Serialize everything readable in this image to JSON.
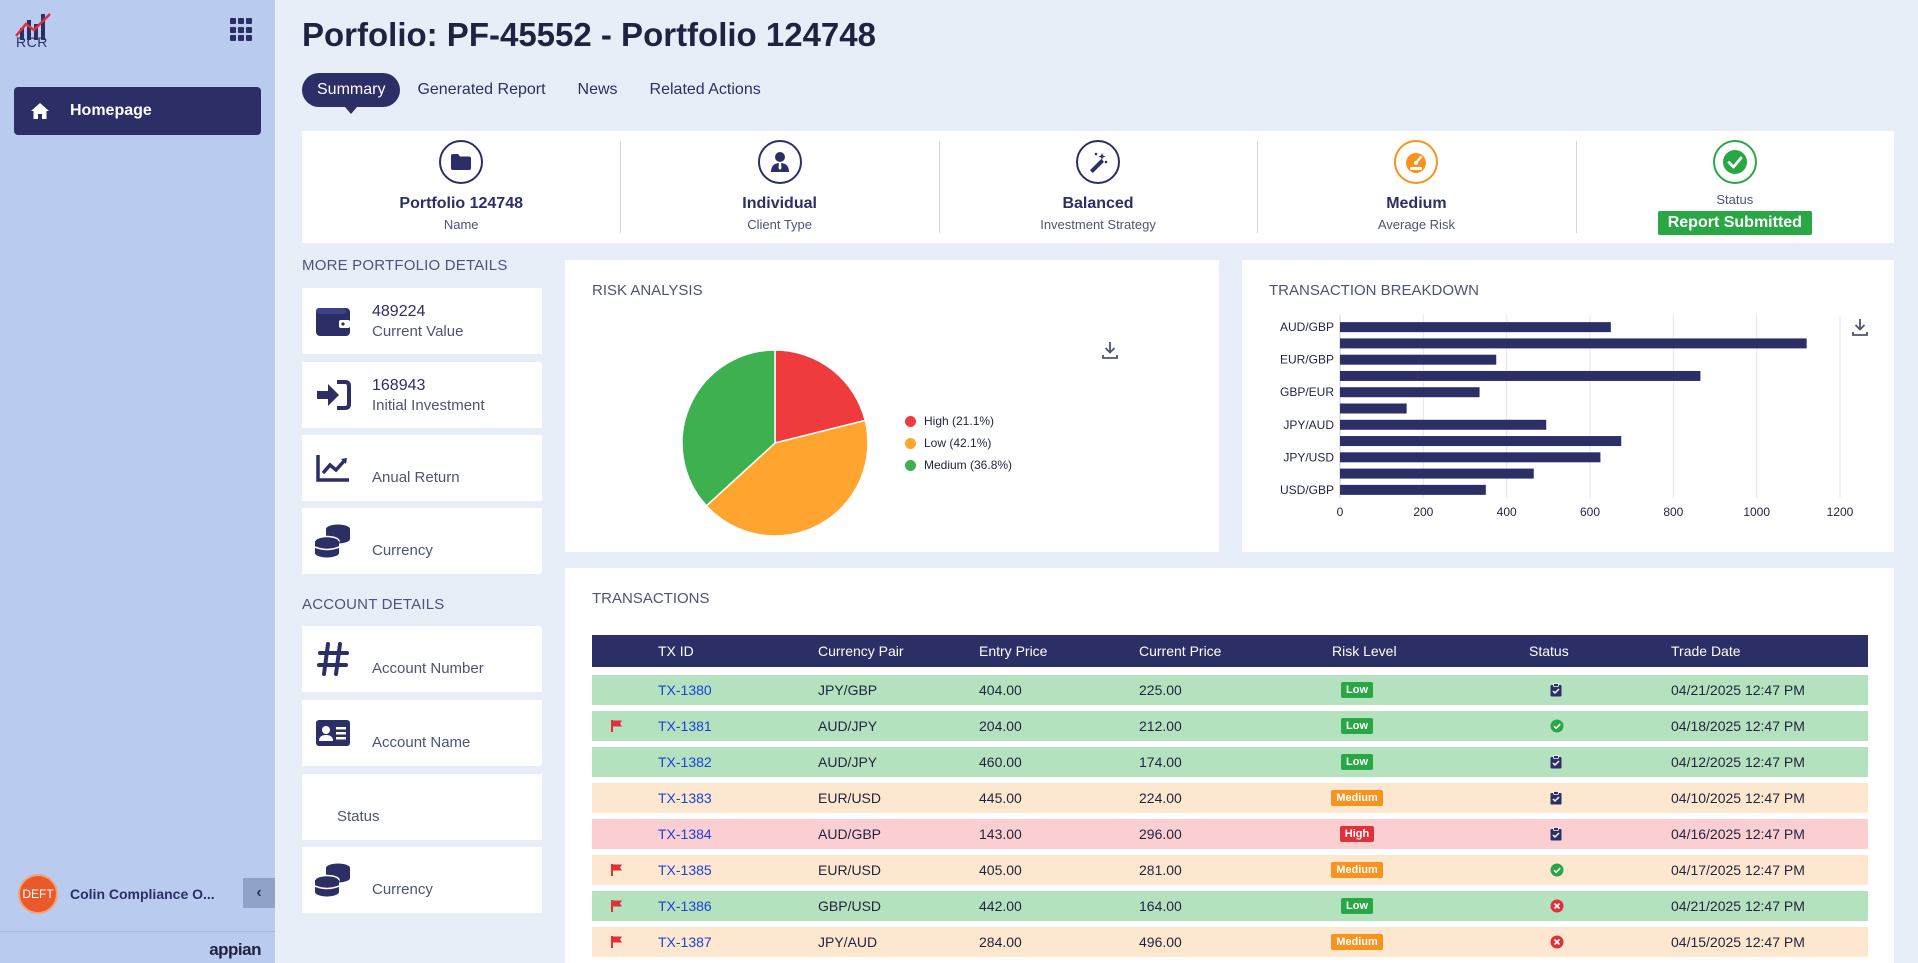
{
  "sidebar": {
    "logo_text": "RCR",
    "nav_home": "Homepage",
    "user": {
      "initials": "DEFT",
      "name": "Colin Compliance O..."
    },
    "footer_brand": "appian"
  },
  "page": {
    "title": "Porfolio: PF-45552 - Portfolio 124748",
    "tabs": [
      "Summary",
      "Generated Report",
      "News",
      "Related Actions"
    ]
  },
  "kpis": [
    {
      "value": "Portfolio 124748",
      "label": "Name",
      "icon": "folder-icon"
    },
    {
      "value": "Individual",
      "label": "Client Type",
      "icon": "user-tie-icon"
    },
    {
      "value": "Balanced",
      "label": "Investment Strategy",
      "icon": "magic-wand-icon"
    },
    {
      "value": "Medium",
      "label": "Average Risk",
      "icon": "gauge-icon"
    },
    {
      "label": "Status",
      "badge": "Report Submitted",
      "icon": "check-circle-icon"
    }
  ],
  "portfolio_details": {
    "title": "MORE PORTFOLIO DETAILS",
    "items": [
      {
        "value": "489224",
        "label": "Current Value"
      },
      {
        "value": "168943",
        "label": "Initial Investment"
      },
      {
        "value": "",
        "label": "Anual Return"
      },
      {
        "value": "",
        "label": "Currency"
      }
    ]
  },
  "account_details": {
    "title": "ACCOUNT DETAILS",
    "items": [
      {
        "label": "Account Number"
      },
      {
        "label": "Account Name"
      },
      {
        "label": "Status"
      },
      {
        "label": "Currency"
      }
    ]
  },
  "risk_analysis": {
    "title": "RISK ANALYSIS",
    "chart_data": {
      "type": "pie",
      "slices": [
        {
          "label": "High (21.1%)",
          "value": 21.1,
          "color": "#ef3b3e"
        },
        {
          "label": "Low (42.1%)",
          "value": 42.1,
          "color": "#ffa42e"
        },
        {
          "label": "Medium (36.8%)",
          "value": 36.8,
          "color": "#3db14f"
        }
      ]
    }
  },
  "transaction_breakdown": {
    "title": "TRANSACTION BREAKDOWN",
    "chart_data": {
      "type": "bar",
      "orientation": "horizontal",
      "categories": [
        "AUD/GBP",
        "",
        "EUR/GBP",
        "",
        "GBP/EUR",
        "",
        "JPY/AUD",
        "",
        "JPY/USD",
        "",
        "USD/GBP"
      ],
      "values": [
        650,
        1120,
        375,
        865,
        335,
        160,
        495,
        675,
        625,
        465,
        350
      ],
      "xlim": [
        0,
        1200
      ],
      "xticks": [
        0,
        200,
        400,
        600,
        800,
        1000,
        1200
      ],
      "color": "#2b2f66",
      "grid": true
    }
  },
  "transactions": {
    "title": "TRANSACTIONS",
    "columns": [
      "TX ID",
      "Currency Pair",
      "Entry Price",
      "Current Price",
      "Risk Level",
      "Status",
      "Trade Date"
    ],
    "rows": [
      {
        "flag": false,
        "id": "TX-1380",
        "pair": "JPY/GBP",
        "entry": "404.00",
        "current": "225.00",
        "risk": "Low",
        "status": "clipboard",
        "date": "04/21/2025 12:47 PM"
      },
      {
        "flag": true,
        "id": "TX-1381",
        "pair": "AUD/JPY",
        "entry": "204.00",
        "current": "212.00",
        "risk": "Low",
        "status": "check",
        "date": "04/18/2025 12:47 PM"
      },
      {
        "flag": false,
        "id": "TX-1382",
        "pair": "AUD/JPY",
        "entry": "460.00",
        "current": "174.00",
        "risk": "Low",
        "status": "clipboard",
        "date": "04/12/2025 12:47 PM"
      },
      {
        "flag": false,
        "id": "TX-1383",
        "pair": "EUR/USD",
        "entry": "445.00",
        "current": "224.00",
        "risk": "Medium",
        "status": "clipboard",
        "date": "04/10/2025 12:47 PM"
      },
      {
        "flag": false,
        "id": "TX-1384",
        "pair": "AUD/GBP",
        "entry": "143.00",
        "current": "296.00",
        "risk": "High",
        "status": "clipboard",
        "date": "04/16/2025 12:47 PM"
      },
      {
        "flag": true,
        "id": "TX-1385",
        "pair": "EUR/USD",
        "entry": "405.00",
        "current": "281.00",
        "risk": "Medium",
        "status": "check",
        "date": "04/17/2025 12:47 PM"
      },
      {
        "flag": true,
        "id": "TX-1386",
        "pair": "GBP/USD",
        "entry": "442.00",
        "current": "164.00",
        "risk": "Low",
        "status": "cross",
        "date": "04/21/2025 12:47 PM"
      },
      {
        "flag": true,
        "id": "TX-1387",
        "pair": "JPY/AUD",
        "entry": "284.00",
        "current": "496.00",
        "risk": "Medium",
        "status": "cross",
        "date": "04/15/2025 12:47 PM"
      }
    ]
  }
}
